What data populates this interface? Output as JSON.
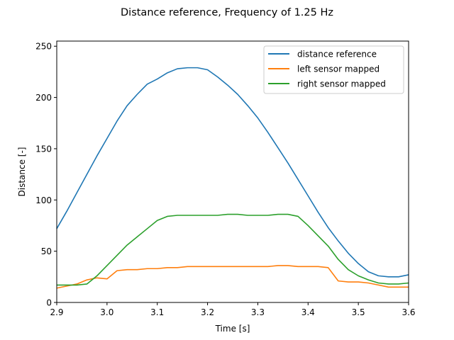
{
  "chart_data": {
    "type": "line",
    "title": "Distance reference, Frequency of 1.25 Hz",
    "xlabel": "Time [s]",
    "ylabel": "Distance [-]",
    "xlim": [
      2.9,
      3.6
    ],
    "ylim": [
      0,
      255
    ],
    "xticks": [
      2.9,
      3.0,
      3.1,
      3.2,
      3.3,
      3.4,
      3.5,
      3.6
    ],
    "xtick_labels": [
      "2.9",
      "3.0",
      "3.1",
      "3.2",
      "3.3",
      "3.4",
      "3.5",
      "3.6"
    ],
    "yticks": [
      0,
      50,
      100,
      150,
      200,
      250
    ],
    "ytick_labels": [
      "0",
      "50",
      "100",
      "150",
      "200",
      "250"
    ],
    "grid": false,
    "legend_position": "top-right",
    "series": [
      {
        "name": "distance reference",
        "color": "#1f77b4",
        "x": [
          2.9,
          2.92,
          2.94,
          2.96,
          2.98,
          3.0,
          3.02,
          3.04,
          3.06,
          3.08,
          3.1,
          3.12,
          3.14,
          3.16,
          3.18,
          3.2,
          3.22,
          3.24,
          3.26,
          3.28,
          3.3,
          3.32,
          3.34,
          3.36,
          3.38,
          3.4,
          3.42,
          3.44,
          3.46,
          3.48,
          3.5,
          3.52,
          3.54,
          3.56,
          3.58,
          3.6
        ],
        "y": [
          72,
          89,
          107,
          125,
          143,
          160,
          177,
          192,
          203,
          213,
          218,
          224,
          228,
          229,
          229,
          227,
          220,
          212,
          203,
          192,
          180,
          166,
          151,
          136,
          120,
          104,
          88,
          73,
          60,
          48,
          38,
          30,
          26,
          25,
          25,
          27
        ]
      },
      {
        "name": "left sensor mapped",
        "color": "#ff7f0e",
        "x": [
          2.9,
          2.92,
          2.94,
          2.96,
          2.98,
          3.0,
          3.02,
          3.04,
          3.06,
          3.08,
          3.1,
          3.12,
          3.14,
          3.16,
          3.18,
          3.2,
          3.22,
          3.24,
          3.26,
          3.28,
          3.3,
          3.32,
          3.34,
          3.36,
          3.38,
          3.4,
          3.42,
          3.44,
          3.46,
          3.48,
          3.5,
          3.52,
          3.54,
          3.56,
          3.58,
          3.6
        ],
        "y": [
          14,
          16,
          18,
          22,
          24,
          23,
          31,
          32,
          32,
          33,
          33,
          34,
          34,
          35,
          35,
          35,
          35,
          35,
          35,
          35,
          35,
          35,
          36,
          36,
          35,
          35,
          35,
          34,
          21,
          20,
          20,
          19,
          17,
          15,
          15,
          15
        ]
      },
      {
        "name": "right sensor mapped",
        "color": "#2ca02c",
        "x": [
          2.9,
          2.92,
          2.94,
          2.96,
          2.98,
          3.0,
          3.02,
          3.04,
          3.06,
          3.08,
          3.1,
          3.12,
          3.14,
          3.16,
          3.18,
          3.2,
          3.22,
          3.24,
          3.26,
          3.28,
          3.3,
          3.32,
          3.34,
          3.36,
          3.38,
          3.4,
          3.42,
          3.44,
          3.46,
          3.48,
          3.5,
          3.52,
          3.54,
          3.56,
          3.58,
          3.6
        ],
        "y": [
          17,
          17,
          17,
          18,
          26,
          36,
          46,
          56,
          64,
          72,
          80,
          84,
          85,
          85,
          85,
          85,
          85,
          86,
          86,
          85,
          85,
          85,
          86,
          86,
          84,
          75,
          65,
          55,
          42,
          32,
          26,
          22,
          19,
          18,
          18,
          19
        ]
      }
    ]
  }
}
